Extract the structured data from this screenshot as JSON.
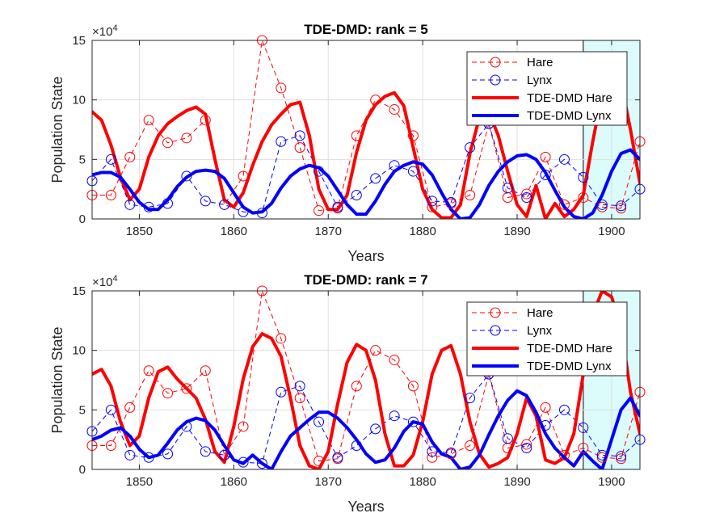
{
  "colors": {
    "hare": "#ff0000",
    "lynx": "#0000ff",
    "forecast_region": "#dcfbfb"
  },
  "chart_data": [
    {
      "type": "line",
      "title": "TDE-DMD: rank = 5",
      "xlabel": "Years",
      "ylabel": "Population State",
      "y_exponent": "×10",
      "y_exponent_power": "4",
      "xlim": [
        1845,
        1903
      ],
      "ylim": [
        0,
        15
      ],
      "x_ticks": [
        "1850",
        "1860",
        "1870",
        "1880",
        "1890",
        "1900"
      ],
      "y_ticks": [
        "0",
        "5",
        "10",
        "15"
      ],
      "grid": true,
      "legend_position": "top-right",
      "forecast_region": [
        1897,
        1903
      ],
      "legend": [
        "Hare",
        "Lynx",
        "TDE-DMD Hare",
        "TDE-DMD Lynx"
      ],
      "series": [
        {
          "name": "Hare",
          "style": "dashed-circle",
          "color": "#ff0000",
          "x": [
            1845,
            1847,
            1849,
            1851,
            1853,
            1855,
            1857,
            1859,
            1861,
            1863,
            1865,
            1867,
            1869,
            1871,
            1873,
            1875,
            1877,
            1879,
            1881,
            1883,
            1885,
            1887,
            1889,
            1891,
            1893,
            1895,
            1897,
            1899,
            1901,
            1903
          ],
          "y": [
            2.0,
            2.0,
            5.2,
            8.3,
            6.4,
            6.8,
            8.3,
            1.2,
            3.6,
            15.0,
            11.0,
            6.0,
            0.7,
            0.9,
            7.0,
            10.0,
            9.2,
            7.0,
            1.0,
            1.3,
            2.0,
            8.0,
            1.8,
            2.1,
            5.2,
            1.2,
            1.8,
            1.0,
            0.9,
            6.5
          ]
        },
        {
          "name": "Lynx",
          "style": "dashed-circle",
          "color": "#0000ff",
          "x": [
            1845,
            1847,
            1849,
            1851,
            1853,
            1855,
            1857,
            1859,
            1861,
            1863,
            1865,
            1867,
            1869,
            1871,
            1873,
            1875,
            1877,
            1879,
            1881,
            1883,
            1885,
            1887,
            1889,
            1891,
            1893,
            1895,
            1897,
            1899,
            1901,
            1903
          ],
          "y": [
            3.2,
            5.0,
            1.2,
            1.0,
            1.3,
            3.6,
            1.5,
            1.2,
            0.6,
            0.5,
            6.5,
            7.0,
            4.0,
            1.0,
            2.0,
            3.4,
            4.5,
            4.0,
            1.5,
            1.4,
            6.0,
            8.0,
            2.6,
            1.8,
            3.7,
            5.0,
            3.5,
            1.2,
            1.1,
            2.5
          ]
        },
        {
          "name": "TDE-DMD Hare",
          "style": "solid",
          "color": "#ff0000",
          "x": [
            1845,
            1846,
            1847,
            1848,
            1849,
            1850,
            1851,
            1852,
            1853,
            1854,
            1855,
            1856,
            1857,
            1858,
            1859,
            1860,
            1861,
            1862,
            1863,
            1864,
            1865,
            1866,
            1867,
            1868,
            1869,
            1870,
            1871,
            1872,
            1873,
            1874,
            1875,
            1876,
            1877,
            1878,
            1879,
            1880,
            1881,
            1882,
            1883,
            1884,
            1885,
            1886,
            1887,
            1888,
            1889,
            1890,
            1891,
            1892,
            1893,
            1894,
            1895,
            1896,
            1897,
            1898,
            1899,
            1900,
            1901,
            1902,
            1903
          ],
          "y": [
            9.0,
            8.3,
            6.2,
            3.5,
            1.6,
            2.5,
            5.2,
            7.0,
            8.0,
            8.6,
            9.1,
            9.4,
            8.8,
            5.0,
            1.6,
            1.0,
            2.2,
            4.5,
            6.5,
            7.9,
            8.8,
            9.6,
            9.8,
            7.0,
            2.5,
            0.8,
            0.8,
            2.0,
            5.6,
            8.3,
            9.6,
            10.3,
            10.6,
            9.5,
            6.0,
            2.5,
            0.8,
            0.1,
            0.1,
            1.2,
            5.5,
            8.5,
            9.0,
            7.0,
            4.0,
            1.2,
            0.2,
            2.8,
            0.0,
            1.3,
            0.2,
            0.8,
            2.0,
            6.5,
            10.5,
            12.5,
            11.5,
            7.5,
            3.0
          ]
        },
        {
          "name": "TDE-DMD Lynx",
          "style": "solid",
          "color": "#0000ff",
          "x": [
            1845,
            1846,
            1847,
            1848,
            1849,
            1850,
            1851,
            1852,
            1853,
            1854,
            1855,
            1856,
            1857,
            1858,
            1859,
            1860,
            1861,
            1862,
            1863,
            1864,
            1865,
            1866,
            1867,
            1868,
            1869,
            1870,
            1871,
            1872,
            1873,
            1874,
            1875,
            1876,
            1877,
            1878,
            1879,
            1880,
            1881,
            1882,
            1883,
            1884,
            1885,
            1886,
            1887,
            1888,
            1889,
            1890,
            1891,
            1892,
            1893,
            1894,
            1895,
            1896,
            1897,
            1898,
            1899,
            1900,
            1901,
            1902,
            1903
          ],
          "y": [
            3.7,
            3.9,
            3.9,
            3.5,
            2.5,
            1.4,
            0.8,
            0.8,
            1.6,
            2.7,
            3.5,
            4.0,
            4.1,
            4.0,
            3.4,
            2.2,
            1.0,
            0.5,
            0.6,
            1.3,
            2.6,
            3.6,
            4.2,
            4.5,
            4.3,
            3.6,
            2.4,
            1.2,
            0.4,
            0.4,
            1.5,
            2.9,
            4.0,
            4.5,
            4.8,
            4.6,
            3.7,
            2.2,
            0.8,
            0.0,
            0.1,
            1.2,
            2.8,
            4.0,
            4.8,
            5.3,
            5.4,
            5.0,
            3.9,
            2.4,
            1.0,
            0.2,
            0.0,
            0.5,
            2.0,
            4.0,
            5.5,
            5.8,
            5.0
          ]
        }
      ]
    },
    {
      "type": "line",
      "title": "TDE-DMD: rank = 7",
      "xlabel": "Years",
      "ylabel": "Population State",
      "y_exponent": "×10",
      "y_exponent_power": "4",
      "xlim": [
        1845,
        1903
      ],
      "ylim": [
        0,
        15
      ],
      "x_ticks": [
        "1850",
        "1860",
        "1870",
        "1880",
        "1890",
        "1900"
      ],
      "y_ticks": [
        "0",
        "5",
        "10",
        "15"
      ],
      "grid": true,
      "legend_position": "top-right",
      "forecast_region": [
        1897,
        1903
      ],
      "legend": [
        "Hare",
        "Lynx",
        "TDE-DMD Hare",
        "TDE-DMD Lynx"
      ],
      "series": [
        {
          "name": "Hare",
          "style": "dashed-circle",
          "color": "#ff0000",
          "x": [
            1845,
            1847,
            1849,
            1851,
            1853,
            1855,
            1857,
            1859,
            1861,
            1863,
            1865,
            1867,
            1869,
            1871,
            1873,
            1875,
            1877,
            1879,
            1881,
            1883,
            1885,
            1887,
            1889,
            1891,
            1893,
            1895,
            1897,
            1899,
            1901,
            1903
          ],
          "y": [
            2.0,
            2.0,
            5.2,
            8.3,
            6.4,
            6.8,
            8.3,
            1.2,
            3.6,
            15.0,
            11.0,
            6.0,
            0.7,
            0.9,
            7.0,
            10.0,
            9.2,
            7.0,
            1.0,
            1.3,
            2.0,
            8.0,
            1.8,
            2.1,
            5.2,
            1.2,
            1.8,
            1.0,
            0.9,
            6.5
          ]
        },
        {
          "name": "Lynx",
          "style": "dashed-circle",
          "color": "#0000ff",
          "x": [
            1845,
            1847,
            1849,
            1851,
            1853,
            1855,
            1857,
            1859,
            1861,
            1863,
            1865,
            1867,
            1869,
            1871,
            1873,
            1875,
            1877,
            1879,
            1881,
            1883,
            1885,
            1887,
            1889,
            1891,
            1893,
            1895,
            1897,
            1899,
            1901,
            1903
          ],
          "y": [
            3.2,
            5.0,
            1.2,
            1.0,
            1.3,
            3.6,
            1.5,
            1.2,
            0.6,
            0.5,
            6.5,
            7.0,
            4.0,
            1.0,
            2.0,
            3.4,
            4.5,
            4.0,
            1.5,
            1.4,
            6.0,
            8.0,
            2.6,
            1.8,
            3.7,
            5.0,
            3.5,
            1.2,
            1.1,
            2.5
          ]
        },
        {
          "name": "TDE-DMD Hare",
          "style": "solid",
          "color": "#ff0000",
          "x": [
            1845,
            1846,
            1847,
            1848,
            1849,
            1850,
            1851,
            1852,
            1853,
            1854,
            1855,
            1856,
            1857,
            1858,
            1859,
            1860,
            1861,
            1862,
            1863,
            1864,
            1865,
            1866,
            1867,
            1868,
            1869,
            1870,
            1871,
            1872,
            1873,
            1874,
            1875,
            1876,
            1877,
            1878,
            1879,
            1880,
            1881,
            1882,
            1883,
            1884,
            1885,
            1886,
            1887,
            1888,
            1889,
            1890,
            1891,
            1892,
            1893,
            1894,
            1895,
            1896,
            1897,
            1898,
            1899,
            1900,
            1901,
            1902,
            1903
          ],
          "y": [
            8.0,
            8.4,
            7.0,
            4.0,
            2.0,
            2.8,
            6.0,
            8.2,
            8.6,
            7.6,
            6.8,
            6.0,
            4.2,
            1.5,
            0.6,
            3.6,
            7.6,
            10.3,
            11.4,
            11.0,
            9.5,
            6.0,
            2.0,
            0.3,
            0.0,
            1.5,
            5.5,
            9.0,
            10.5,
            10.0,
            7.5,
            3.0,
            0.3,
            0.3,
            1.2,
            4.0,
            8.0,
            10.0,
            10.4,
            8.0,
            4.0,
            1.3,
            0.2,
            0.5,
            1.0,
            3.0,
            6.0,
            4.5,
            0.8,
            0.5,
            1.0,
            3.0,
            8.0,
            13.0,
            15.0,
            14.5,
            12.0,
            6.5,
            3.0
          ]
        },
        {
          "name": "TDE-DMD Lynx",
          "style": "solid",
          "color": "#0000ff",
          "x": [
            1845,
            1846,
            1847,
            1848,
            1849,
            1850,
            1851,
            1852,
            1853,
            1854,
            1855,
            1856,
            1857,
            1858,
            1859,
            1860,
            1861,
            1862,
            1863,
            1864,
            1865,
            1866,
            1867,
            1868,
            1869,
            1870,
            1871,
            1872,
            1873,
            1874,
            1875,
            1876,
            1877,
            1878,
            1879,
            1880,
            1881,
            1882,
            1883,
            1884,
            1885,
            1886,
            1887,
            1888,
            1889,
            1890,
            1891,
            1892,
            1893,
            1894,
            1895,
            1896,
            1897,
            1898,
            1899,
            1900,
            1901,
            1902,
            1903
          ],
          "y": [
            2.5,
            2.8,
            3.3,
            3.5,
            2.8,
            1.7,
            1.0,
            1.2,
            2.2,
            3.3,
            4.0,
            4.3,
            4.1,
            3.3,
            2.0,
            0.8,
            0.5,
            1.2,
            0.5,
            0.0,
            1.5,
            2.8,
            3.5,
            4.2,
            4.8,
            4.8,
            4.3,
            3.5,
            2.5,
            1.3,
            0.6,
            0.8,
            1.8,
            3.2,
            4.0,
            3.8,
            2.3,
            1.3,
            1.0,
            0.0,
            0.2,
            1.2,
            2.9,
            4.5,
            5.8,
            6.6,
            6.2,
            4.8,
            3.0,
            1.8,
            1.0,
            0.3,
            1.5,
            0.7,
            0.0,
            2.5,
            5.0,
            6.0,
            4.5
          ]
        }
      ]
    }
  ]
}
